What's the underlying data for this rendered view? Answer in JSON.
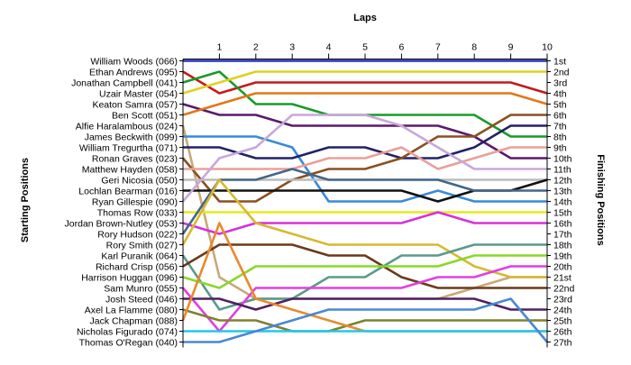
{
  "chart_data": {
    "type": "line",
    "title": "Laps",
    "xlabel": "Laps",
    "ylabel_left": "Starting Positions",
    "ylabel_right": "Finishing Positions",
    "laps": [
      0,
      1,
      2,
      3,
      4,
      5,
      6,
      7,
      8,
      9,
      10
    ],
    "x_ticks": [
      "1",
      "2",
      "3",
      "4",
      "5",
      "6",
      "7",
      "8",
      "9",
      "10"
    ],
    "finishing_labels": [
      "1st",
      "2nd",
      "3rd",
      "4th",
      "5th",
      "6th",
      "7th",
      "8th",
      "9th",
      "10th",
      "11th",
      "12th",
      "13th",
      "14th",
      "15th",
      "16th",
      "17th",
      "18th",
      "19th",
      "20th",
      "21st",
      "22nd",
      "23rd",
      "24th",
      "25th",
      "26th",
      "27th"
    ],
    "series": [
      {
        "name": "William Woods (066)",
        "color": "#2233b8",
        "positions": [
          1,
          1,
          1,
          1,
          1,
          1,
          1,
          1,
          1,
          1,
          1
        ]
      },
      {
        "name": "Ethan Andrews (095)",
        "color": "#c41a1a",
        "positions": [
          2,
          4,
          3,
          3,
          3,
          3,
          3,
          3,
          3,
          3,
          4
        ]
      },
      {
        "name": "Jonathan Campbell (041)",
        "color": "#1a9a2a",
        "positions": [
          3,
          2,
          5,
          5,
          6,
          6,
          6,
          6,
          6,
          8,
          8
        ]
      },
      {
        "name": "Uzair Master (054)",
        "color": "#e0d020",
        "positions": [
          4,
          3,
          2,
          2,
          2,
          2,
          2,
          2,
          2,
          2,
          2
        ]
      },
      {
        "name": "Keaton Samra (057)",
        "color": "#5a1a6a",
        "positions": [
          5,
          6,
          6,
          7,
          7,
          7,
          7,
          7,
          8,
          10,
          10
        ]
      },
      {
        "name": "Ben Scott (051)",
        "color": "#e07818",
        "positions": [
          6,
          5,
          4,
          4,
          4,
          4,
          4,
          4,
          4,
          4,
          5
        ]
      },
      {
        "name": "Alfie Haralambous (024)",
        "color": "#c8a878",
        "positions": [
          7,
          21,
          23,
          23,
          23,
          23,
          23,
          23,
          22,
          21,
          21
        ]
      },
      {
        "name": "James Beckwith (099)",
        "color": "#3a8ad8",
        "positions": [
          8,
          8,
          8,
          9,
          14,
          14,
          14,
          13,
          14,
          14,
          14
        ]
      },
      {
        "name": "William Tregurtha (071)",
        "color": "#222266",
        "positions": [
          9,
          9,
          10,
          10,
          9,
          9,
          10,
          10,
          9,
          7,
          7
        ]
      },
      {
        "name": "Ronan Graves (023)",
        "color": "#8a5020",
        "positions": [
          10,
          14,
          14,
          12,
          11,
          11,
          10,
          8,
          8,
          6,
          6
        ]
      },
      {
        "name": "Matthew Hayden (058)",
        "color": "#e8a098",
        "positions": [
          11,
          11,
          11,
          11,
          10,
          10,
          9,
          11,
          10,
          9,
          9
        ]
      },
      {
        "name": "Geri Nicosia (050)",
        "color": "#ffffff",
        "positions": [
          12,
          12,
          12,
          12,
          12,
          12,
          12,
          12,
          12,
          12,
          12
        ]
      },
      {
        "name": "Lochlan Bearman (016)",
        "color": "#111111",
        "positions": [
          13,
          13,
          13,
          13,
          13,
          13,
          13,
          14,
          13,
          13,
          12
        ]
      },
      {
        "name": "Ryan Gillespie (090)",
        "color": "#c8a8d8",
        "positions": [
          14,
          10,
          9,
          6,
          6,
          6,
          7,
          9,
          11,
          11,
          11
        ]
      },
      {
        "name": "Thomas Row (033)",
        "color": "#e8e820",
        "positions": [
          15,
          15,
          15,
          15,
          15,
          15,
          15,
          15,
          15,
          15,
          15
        ]
      },
      {
        "name": "Jordan Brown-Nutley (053)",
        "color": "#d830d8",
        "positions": [
          16,
          17,
          16,
          16,
          16,
          16,
          16,
          15,
          16,
          16,
          16
        ]
      },
      {
        "name": "Rory Hudson (022)",
        "color": "#446688",
        "positions": [
          17,
          12,
          12,
          11,
          12,
          12,
          12,
          12,
          13,
          13,
          13
        ]
      },
      {
        "name": "Rory Smith (027)",
        "color": "#d8b830",
        "positions": [
          18,
          12,
          16,
          17,
          18,
          18,
          18,
          18,
          20,
          21,
          21
        ]
      },
      {
        "name": "Karl Puranik (064)",
        "color": "#5a9a8a",
        "positions": [
          19,
          24,
          23,
          23,
          21,
          21,
          19,
          19,
          18,
          18,
          18
        ]
      },
      {
        "name": "Richard Crisp (056)",
        "color": "#6a3a1a",
        "positions": [
          20,
          18,
          18,
          18,
          19,
          19,
          21,
          22,
          22,
          22,
          22
        ]
      },
      {
        "name": "Harrison Huggan (096)",
        "color": "#88d828",
        "positions": [
          21,
          22,
          20,
          20,
          20,
          20,
          20,
          20,
          19,
          19,
          19
        ]
      },
      {
        "name": "Sam Munro (055)",
        "color": "#e040e0",
        "positions": [
          22,
          26,
          22,
          22,
          22,
          22,
          22,
          21,
          21,
          20,
          20
        ]
      },
      {
        "name": "Josh Steed (046)",
        "color": "#502060",
        "positions": [
          23,
          23,
          24,
          23,
          23,
          23,
          23,
          23,
          23,
          24,
          24
        ]
      },
      {
        "name": "Axel La Flamme (080)",
        "color": "#808030",
        "positions": [
          24,
          25,
          25,
          26,
          26,
          25,
          25,
          25,
          25,
          25,
          25
        ]
      },
      {
        "name": "Jack Chapman (088)",
        "color": "#e88a30",
        "positions": [
          25,
          16,
          23,
          24,
          25,
          26,
          26,
          26,
          26,
          26,
          26
        ]
      },
      {
        "name": "Nicholas Figurado (074)",
        "color": "#20c8e8",
        "positions": [
          26,
          26,
          26,
          26,
          26,
          26,
          26,
          26,
          26,
          26,
          26
        ]
      },
      {
        "name": "Thomas O'Regan (040)",
        "color": "#4a88d0",
        "positions": [
          27,
          27,
          26,
          25,
          24,
          24,
          24,
          24,
          24,
          23,
          27
        ]
      }
    ]
  }
}
